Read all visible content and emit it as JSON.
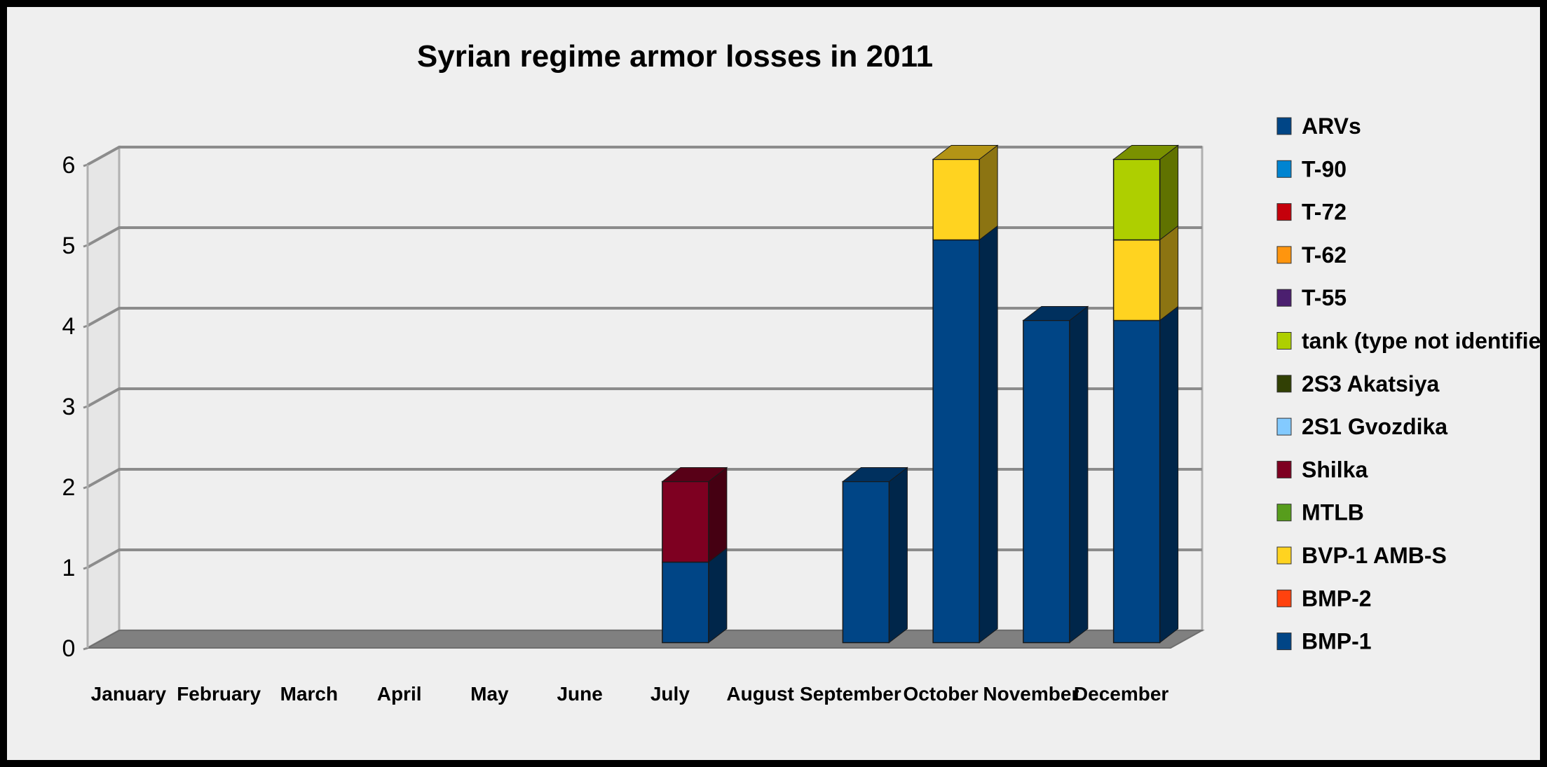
{
  "chart_data": {
    "type": "bar",
    "stacked": true,
    "three_d": true,
    "title": "Syrian regime armor losses in 2011",
    "xlabel": "",
    "ylabel": "",
    "ylim": [
      0,
      6
    ],
    "yticks": [
      0,
      1,
      2,
      3,
      4,
      5,
      6
    ],
    "grid": true,
    "legend_position": "right",
    "categories": [
      "January",
      "February",
      "March",
      "April",
      "May",
      "June",
      "July",
      "August",
      "September",
      "October",
      "November",
      "December"
    ],
    "series": [
      {
        "name": "BMP-1",
        "color": "#004586",
        "values": [
          0,
          0,
          0,
          0,
          0,
          0,
          1,
          0,
          2,
          5,
          4,
          4
        ]
      },
      {
        "name": "BMP-2",
        "color": "#ff420e",
        "values": [
          0,
          0,
          0,
          0,
          0,
          0,
          0,
          0,
          0,
          0,
          0,
          0
        ]
      },
      {
        "name": "BVP-1 AMB-S",
        "color": "#ffd320",
        "values": [
          0,
          0,
          0,
          0,
          0,
          0,
          0,
          0,
          0,
          1,
          0,
          1
        ]
      },
      {
        "name": "MTLB",
        "color": "#579d1c",
        "values": [
          0,
          0,
          0,
          0,
          0,
          0,
          0,
          0,
          0,
          0,
          0,
          0
        ]
      },
      {
        "name": "Shilka",
        "color": "#7e0021",
        "values": [
          0,
          0,
          0,
          0,
          0,
          0,
          1,
          0,
          0,
          0,
          0,
          0
        ]
      },
      {
        "name": "2S1 Gvozdika",
        "color": "#83caff",
        "values": [
          0,
          0,
          0,
          0,
          0,
          0,
          0,
          0,
          0,
          0,
          0,
          0
        ]
      },
      {
        "name": "2S3 Akatsiya",
        "color": "#314004",
        "values": [
          0,
          0,
          0,
          0,
          0,
          0,
          0,
          0,
          0,
          0,
          0,
          0
        ]
      },
      {
        "name": "tank (type not identified)",
        "color": "#aecf00",
        "values": [
          0,
          0,
          0,
          0,
          0,
          0,
          0,
          0,
          0,
          0,
          0,
          1
        ]
      },
      {
        "name": "T-55",
        "color": "#4b1f6f",
        "values": [
          0,
          0,
          0,
          0,
          0,
          0,
          0,
          0,
          0,
          0,
          0,
          0
        ]
      },
      {
        "name": "T-62",
        "color": "#ff950e",
        "values": [
          0,
          0,
          0,
          0,
          0,
          0,
          0,
          0,
          0,
          0,
          0,
          0
        ]
      },
      {
        "name": "T-72",
        "color": "#c5000b",
        "values": [
          0,
          0,
          0,
          0,
          0,
          0,
          0,
          0,
          0,
          0,
          0,
          0
        ]
      },
      {
        "name": "T-90",
        "color": "#0084d1",
        "values": [
          0,
          0,
          0,
          0,
          0,
          0,
          0,
          0,
          0,
          0,
          0,
          0
        ]
      },
      {
        "name": "ARVs",
        "color": "#004586",
        "values": [
          0,
          0,
          0,
          0,
          0,
          0,
          0,
          0,
          0,
          0,
          0,
          0
        ]
      }
    ]
  }
}
